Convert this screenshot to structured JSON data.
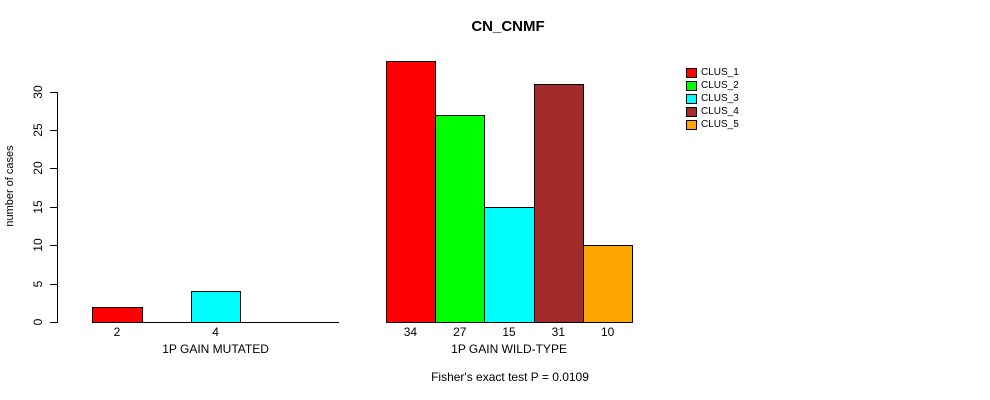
{
  "chart_data": {
    "type": "bar",
    "title": "CN_CNMF",
    "ylabel": "number of cases",
    "xlabel": "",
    "ylim": [
      0,
      34
    ],
    "yticks": [
      0,
      5,
      10,
      15,
      20,
      25,
      30
    ],
    "grid": false,
    "legend_position": "top-right",
    "legend": [
      {
        "label": "CLUS_1",
        "color": "#ff0000"
      },
      {
        "label": "CLUS_2",
        "color": "#00ff00"
      },
      {
        "label": "CLUS_3",
        "color": "#00ffff"
      },
      {
        "label": "CLUS_4",
        "color": "#a52a2a"
      },
      {
        "label": "CLUS_5",
        "color": "#ffa500"
      }
    ],
    "groups": [
      {
        "label": "1P GAIN MUTATED",
        "values": [
          2,
          0,
          4,
          0,
          0
        ],
        "bar_labels": [
          "2",
          "",
          "4",
          "",
          ""
        ]
      },
      {
        "label": "1P GAIN WILD-TYPE",
        "values": [
          34,
          27,
          15,
          31,
          10
        ],
        "bar_labels": [
          "34",
          "27",
          "15",
          "31",
          "10"
        ]
      }
    ],
    "annotation": "Fisher's exact test P = 0.0109"
  }
}
